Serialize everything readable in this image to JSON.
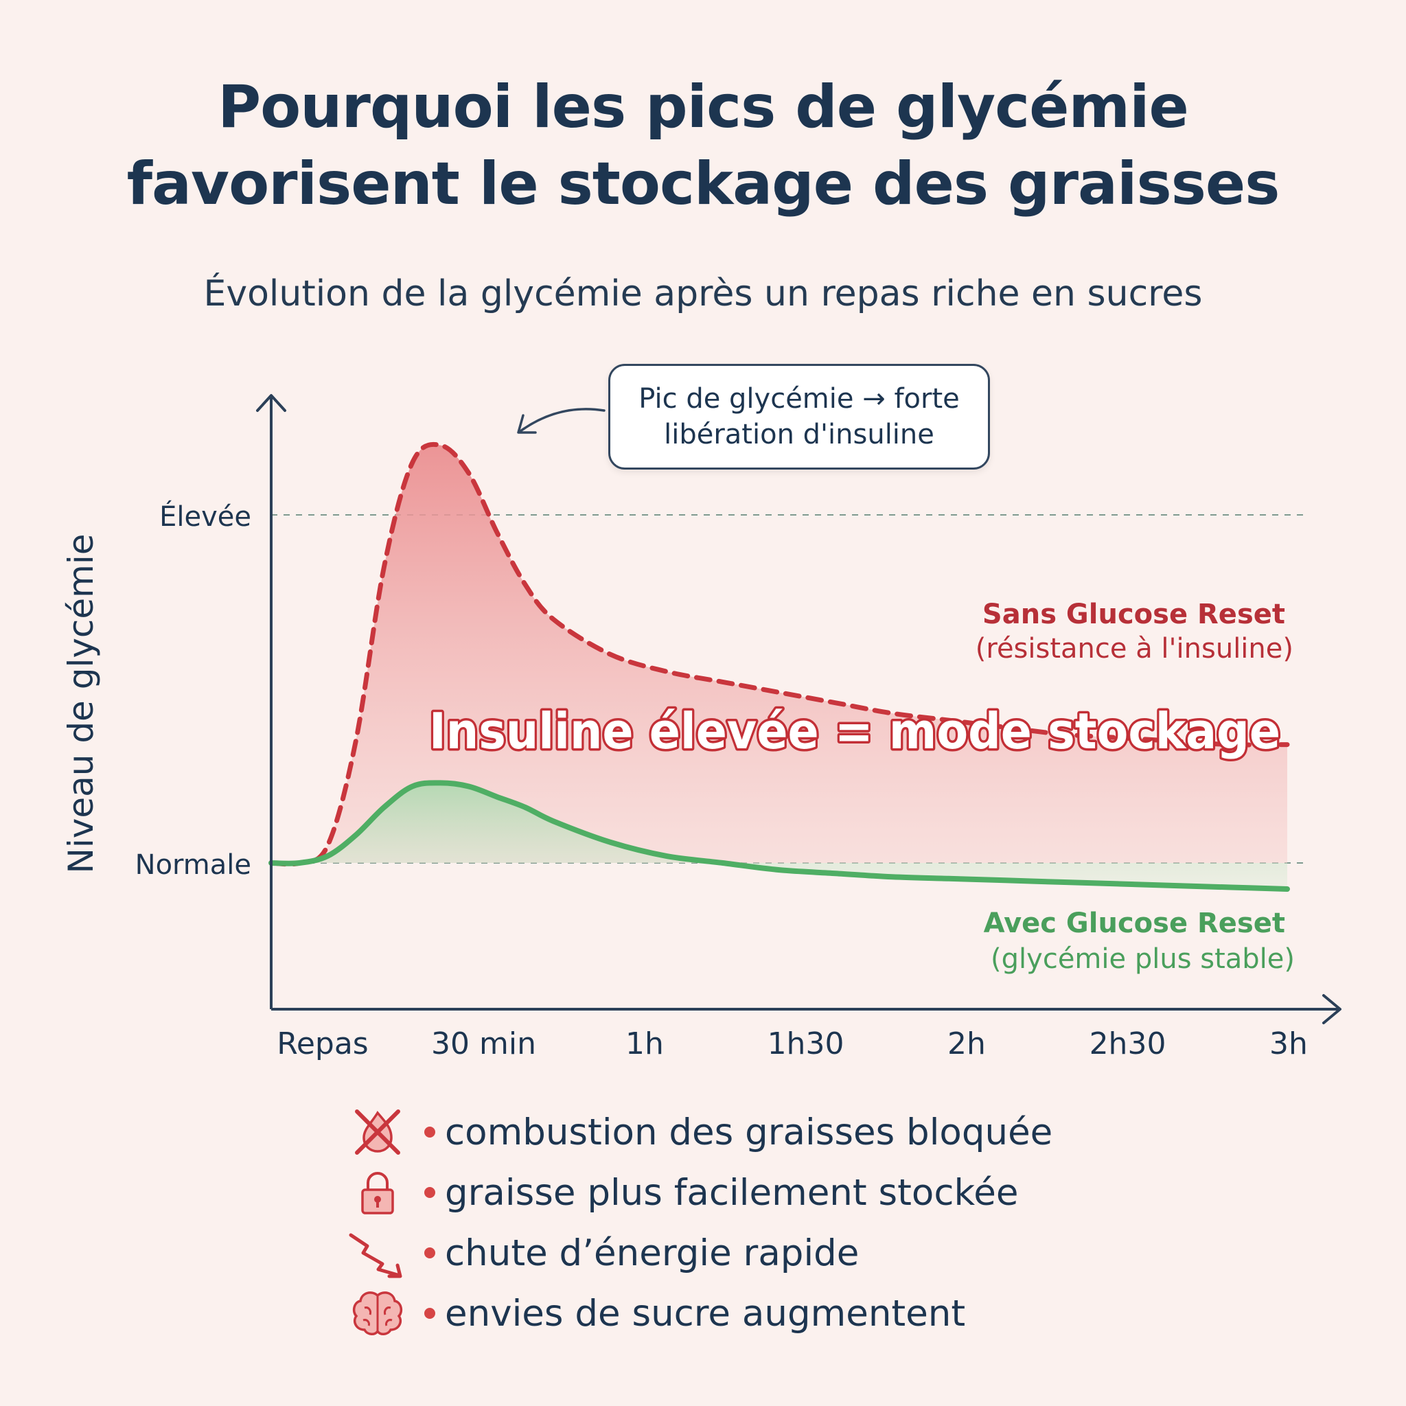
{
  "header": {
    "title_line1": "Pourquoi les pics de glycémie",
    "title_line2": "favorisent le stockage des graisses",
    "subtitle": "Évolution de la glycémie après un repas riche en sucres"
  },
  "callout": {
    "line1": "Pic de glycémie → forte",
    "line2": "libération d'insuline"
  },
  "colors": {
    "red": "#c9363d",
    "green": "#4fae64",
    "navy": "#1d3550"
  },
  "chart_data": {
    "type": "area",
    "ylabel": "Niveau de glycémie",
    "x_ticks": [
      "Repas",
      "30 min",
      "1h",
      "1h30",
      "2h",
      "2h30",
      "3h"
    ],
    "y_ticks": [
      "Normale",
      "Élevée"
    ],
    "reference_lines": [
      "Normale",
      "Élevée"
    ],
    "series": [
      {
        "name": "Sans Glucose Reset",
        "note": "(résistance à l'insuline)",
        "style": "dashed",
        "color": "#c9363d",
        "x": [
          0,
          5,
          10,
          15,
          20,
          25,
          30,
          35,
          40,
          45,
          50,
          60,
          70,
          80,
          90,
          100,
          110,
          120,
          130,
          140,
          150,
          160,
          170,
          180
        ],
        "y": [
          0.0,
          0.0,
          0.05,
          0.35,
          0.85,
          1.15,
          1.2,
          1.12,
          0.95,
          0.8,
          0.7,
          0.6,
          0.55,
          0.52,
          0.49,
          0.46,
          0.43,
          0.41,
          0.39,
          0.37,
          0.36,
          0.35,
          0.34,
          0.34
        ]
      },
      {
        "name": "Avec Glucose Reset",
        "note": "(glycémie plus stable)",
        "style": "solid",
        "color": "#4fae64",
        "x": [
          0,
          5,
          10,
          15,
          20,
          25,
          30,
          35,
          40,
          45,
          50,
          60,
          70,
          80,
          90,
          100,
          110,
          120,
          130,
          140,
          150,
          160,
          170,
          180
        ],
        "y": [
          0.0,
          0.0,
          0.02,
          0.08,
          0.16,
          0.22,
          0.23,
          0.22,
          0.19,
          0.16,
          0.12,
          0.06,
          0.02,
          0.0,
          -0.02,
          -0.03,
          -0.04,
          -0.045,
          -0.05,
          -0.055,
          -0.06,
          -0.065,
          -0.07,
          -0.075
        ]
      }
    ],
    "annotation": "Insuline élevée = mode stockage",
    "xlim": [
      0,
      180
    ],
    "ylim": [
      -0.4,
      1.4
    ],
    "grid": false
  },
  "legend": [
    {
      "icon": "fat-burn-blocked-icon",
      "text": "combustion des graisses bloquée"
    },
    {
      "icon": "lock-icon",
      "text": "graisse plus facilement stockée"
    },
    {
      "icon": "energy-drop-icon",
      "text": "chute d’énergie rapide"
    },
    {
      "icon": "brain-icon",
      "text": "envies de sucre augmentent"
    }
  ]
}
